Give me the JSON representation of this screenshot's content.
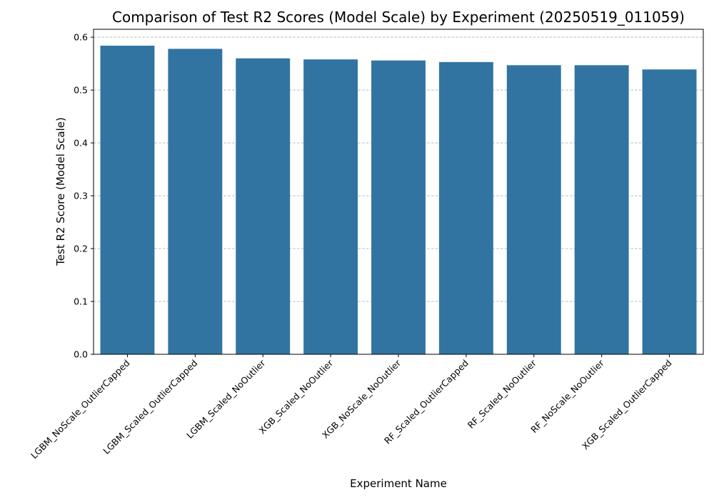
{
  "chart_data": {
    "type": "bar",
    "title": "Comparison of Test R2 Scores (Model Scale) by Experiment (20250519_011059)",
    "xlabel": "Experiment Name",
    "ylabel": "Test R2 Score (Model Scale)",
    "categories": [
      "LGBM_NoScale_OutlierCapped",
      "LGBM_Scaled_OutlierCapped",
      "LGBM_Scaled_NoOutlier",
      "XGB_Scaled_NoOutlier",
      "XGB_NoScale_NoOutlier",
      "RF_Scaled_OutlierCapped",
      "RF_Scaled_NoOutlier",
      "RF_NoScale_NoOutlier",
      "XGB_Scaled_OutlierCapped"
    ],
    "values": [
      0.584,
      0.578,
      0.56,
      0.558,
      0.556,
      0.553,
      0.547,
      0.547,
      0.539
    ],
    "ylim": [
      0,
      0.615
    ],
    "yticks": [
      0.0,
      0.1,
      0.2,
      0.3,
      0.4,
      0.5,
      0.6
    ],
    "ytick_labels": [
      "0.0",
      "0.1",
      "0.2",
      "0.3",
      "0.4",
      "0.5",
      "0.6"
    ],
    "grid": "y-dashed",
    "bar_color": "#3274a1",
    "grid_color": "#b0b0b0"
  }
}
